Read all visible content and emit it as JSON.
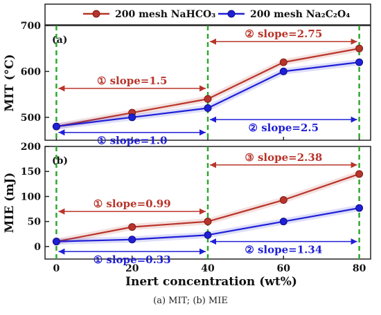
{
  "legend": {
    "items": [
      {
        "label": "200 mesh NaHCO₃",
        "color": "#b8342a"
      },
      {
        "label": "200 mesh Na₂C₂O₄",
        "color": "#1f1fd6"
      }
    ]
  },
  "xlabel": "Inert concentration (wt%)",
  "caption": "(a) MIT; (b) MIE",
  "chart_data": [
    {
      "type": "line",
      "panel_label": "(a)",
      "ylabel": "MIT (°C)",
      "x": [
        0,
        20,
        40,
        60,
        80
      ],
      "xlim": [
        -3,
        83
      ],
      "ylim": [
        450,
        700
      ],
      "yticks": [
        500,
        600,
        700
      ],
      "grid": false,
      "legend_placement": "top",
      "series": [
        {
          "name": "200 mesh NaHCO₃",
          "values": [
            480,
            510,
            540,
            620,
            650
          ]
        },
        {
          "name": "200 mesh Na₂C₂O₄",
          "values": [
            480,
            500,
            520,
            600,
            620
          ]
        }
      ],
      "vlines": [
        0,
        40,
        80
      ],
      "annotations": [
        {
          "text": "① slope=1.5",
          "x_from": 0,
          "x_to": 40,
          "y": 563,
          "color": "#b8342a"
        },
        {
          "text": "② slope=2.75",
          "x_from": 40,
          "x_to": 80,
          "y": 665,
          "color": "#b8342a"
        },
        {
          "text": "① slope=1.0",
          "x_from": 0,
          "x_to": 40,
          "y": 467,
          "color": "#1f1fd6"
        },
        {
          "text": "② slope=2.5",
          "x_from": 40,
          "x_to": 80,
          "y": 495,
          "color": "#1f1fd6"
        }
      ]
    },
    {
      "type": "line",
      "panel_label": "(b)",
      "ylabel": "MIE (mJ)",
      "x": [
        0,
        20,
        40,
        60,
        80
      ],
      "xlim": [
        -3,
        83
      ],
      "ylim": [
        -25,
        200
      ],
      "yticks": [
        0,
        50,
        100,
        150,
        200
      ],
      "xticks": [
        0,
        20,
        40,
        60,
        80
      ],
      "grid": false,
      "series": [
        {
          "name": "200 mesh NaHCO₃",
          "values": [
            10,
            39,
            50,
            93,
            145
          ]
        },
        {
          "name": "200 mesh Na₂C₂O₄",
          "values": [
            10,
            14,
            23,
            50,
            77
          ]
        }
      ],
      "vlines": [
        0,
        40,
        80
      ],
      "annotations": [
        {
          "text": "① slope=0.99",
          "x_from": 0,
          "x_to": 40,
          "y": 70,
          "color": "#b8342a"
        },
        {
          "text": "③ slope=2.38",
          "x_from": 40,
          "x_to": 80,
          "y": 163,
          "color": "#b8342a"
        },
        {
          "text": "① slope=0.33",
          "x_from": 0,
          "x_to": 40,
          "y": -10,
          "color": "#1f1fd6"
        },
        {
          "text": "② slope=1.34",
          "x_from": 40,
          "x_to": 80,
          "y": 10,
          "color": "#1f1fd6"
        }
      ]
    }
  ]
}
